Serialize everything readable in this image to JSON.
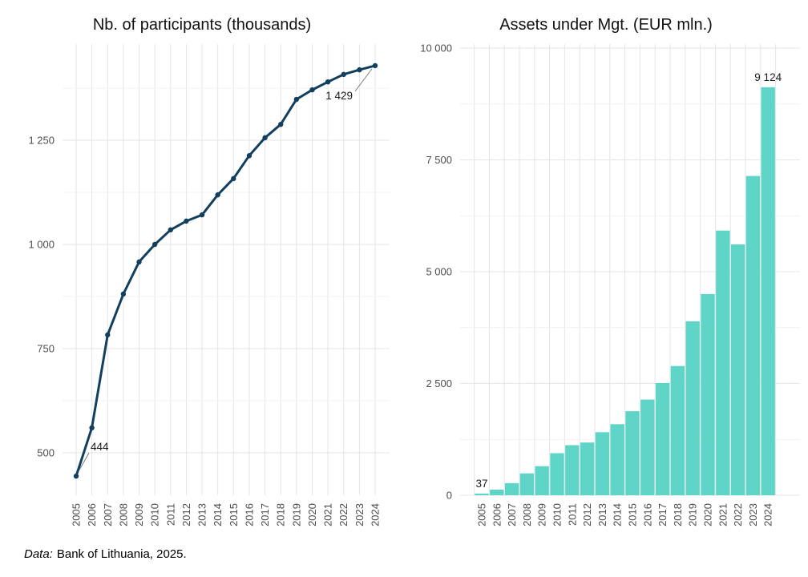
{
  "figure": {
    "footer": {
      "source_label": "Data:",
      "source_text": "Bank of Lithuania, 2025."
    }
  },
  "chart_data": [
    {
      "type": "line",
      "title": "Nb. of participants (thousands)",
      "categories": [
        "2005",
        "2006",
        "2007",
        "2008",
        "2009",
        "2010",
        "2011",
        "2012",
        "2013",
        "2014",
        "2015",
        "2016",
        "2017",
        "2018",
        "2019",
        "2020",
        "2021",
        "2022",
        "2023",
        "2024"
      ],
      "values": [
        444,
        560,
        783,
        881,
        958,
        1000,
        1035,
        1056,
        1071,
        1119,
        1158,
        1213,
        1256,
        1288,
        1348,
        1371,
        1390,
        1408,
        1419,
        1429
      ],
      "xlabel": "",
      "ylabel": "",
      "ylim": [
        390,
        1500
      ],
      "yticks": [
        500,
        750,
        1000,
        1250
      ],
      "ytick_labels": [
        "500",
        "750",
        "1 000",
        "1 250"
      ],
      "yminor": [
        625,
        875,
        1125,
        1375
      ],
      "grid": "on",
      "legend": "none",
      "line_color": "#123f5e",
      "annotations": [
        {
          "category": "2005",
          "value": 444,
          "label": "444"
        },
        {
          "category": "2024",
          "value": 1429,
          "label": "1 429"
        }
      ]
    },
    {
      "type": "bar",
      "title": "Assets under Mgt. (EUR mln.)",
      "categories": [
        "2005",
        "2006",
        "2007",
        "2008",
        "2009",
        "2010",
        "2011",
        "2012",
        "2013",
        "2014",
        "2015",
        "2016",
        "2017",
        "2018",
        "2019",
        "2020",
        "2021",
        "2022",
        "2023",
        "2024"
      ],
      "values": [
        37,
        125,
        270,
        490,
        650,
        940,
        1120,
        1180,
        1410,
        1590,
        1880,
        2140,
        2510,
        2890,
        3890,
        4500,
        5920,
        5610,
        7140,
        9124
      ],
      "xlabel": "",
      "ylabel": "",
      "ylim": [
        0,
        10000
      ],
      "yticks": [
        0,
        2500,
        5000,
        7500,
        10000
      ],
      "ytick_labels": [
        "0",
        "2 500",
        "5 000",
        "7 500",
        "10 000"
      ],
      "yminor": [
        1250,
        3750,
        6250,
        8750
      ],
      "grid": "on",
      "legend": "none",
      "bar_color": "#5ed5c6",
      "annotations": [
        {
          "category": "2005",
          "value": 37,
          "label": "37"
        },
        {
          "category": "2024",
          "value": 9124,
          "label": "9 124"
        }
      ]
    }
  ]
}
